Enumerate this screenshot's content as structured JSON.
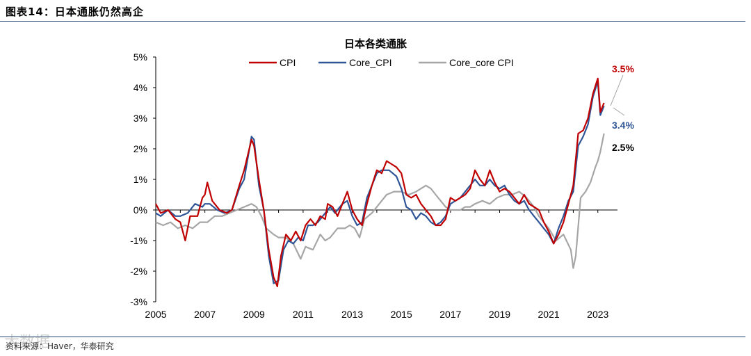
{
  "header": {
    "figure_title": "图表14：日本通胀仍然高企"
  },
  "footer": {
    "source": "资料来源：Haver，华泰研究",
    "watermark": "大数据"
  },
  "colors": {
    "cpi": "#c00000",
    "core": "#2f5597",
    "corecore": "#a6a6a6",
    "rule": "#1f3f6e"
  },
  "chart_data": {
    "type": "line",
    "title": "日本各类通胀",
    "xlabel": "",
    "ylabel": "",
    "xlim": [
      2005,
      2023.8
    ],
    "ylim": [
      -3,
      5
    ],
    "x_ticks": [
      2005,
      2007,
      2009,
      2011,
      2013,
      2015,
      2017,
      2019,
      2021,
      2023
    ],
    "x_tick_labels": [
      "2005",
      "2007",
      "2009",
      "2011",
      "2013",
      "2015",
      "2017",
      "2019",
      "2021",
      "2023"
    ],
    "y_ticks": [
      -3,
      -2,
      -1,
      0,
      1,
      2,
      3,
      4,
      5
    ],
    "y_tick_labels": [
      "-3%",
      "-2%",
      "-1%",
      "0%",
      "1%",
      "2%",
      "3%",
      "4%",
      "5%"
    ],
    "legend": [
      "CPI",
      "Core_CPI",
      "Core_core CPI"
    ],
    "series": [
      {
        "name": "CPI",
        "color": "#c00000",
        "points": [
          [
            2005.0,
            0.2
          ],
          [
            2005.2,
            -0.1
          ],
          [
            2005.5,
            0.0
          ],
          [
            2005.8,
            -0.3
          ],
          [
            2006.0,
            -0.4
          ],
          [
            2006.2,
            -1.0
          ],
          [
            2006.4,
            -0.2
          ],
          [
            2006.7,
            -0.2
          ],
          [
            2006.9,
            0.4
          ],
          [
            2007.0,
            0.5
          ],
          [
            2007.1,
            0.9
          ],
          [
            2007.3,
            0.3
          ],
          [
            2007.6,
            0.0
          ],
          [
            2007.9,
            -0.1
          ],
          [
            2008.1,
            0.0
          ],
          [
            2008.4,
            0.8
          ],
          [
            2008.6,
            1.3
          ],
          [
            2008.9,
            2.3
          ],
          [
            2009.0,
            2.1
          ],
          [
            2009.2,
            1.0
          ],
          [
            2009.4,
            0.0
          ],
          [
            2009.6,
            -1.3
          ],
          [
            2009.8,
            -2.2
          ],
          [
            2009.95,
            -2.5
          ],
          [
            2010.1,
            -1.5
          ],
          [
            2010.3,
            -0.8
          ],
          [
            2010.5,
            -1.0
          ],
          [
            2010.7,
            -0.7
          ],
          [
            2010.9,
            -1.0
          ],
          [
            2011.1,
            -0.5
          ],
          [
            2011.3,
            -0.3
          ],
          [
            2011.5,
            -0.5
          ],
          [
            2011.7,
            -0.2
          ],
          [
            2011.9,
            -0.3
          ],
          [
            2012.0,
            0.2
          ],
          [
            2012.2,
            0.1
          ],
          [
            2012.4,
            -0.2
          ],
          [
            2012.6,
            0.2
          ],
          [
            2012.8,
            0.6
          ],
          [
            2013.0,
            0.0
          ],
          [
            2013.2,
            -0.3
          ],
          [
            2013.4,
            -0.5
          ],
          [
            2013.6,
            0.2
          ],
          [
            2013.8,
            0.8
          ],
          [
            2014.0,
            1.3
          ],
          [
            2014.2,
            1.2
          ],
          [
            2014.4,
            1.6
          ],
          [
            2014.6,
            1.5
          ],
          [
            2014.8,
            1.4
          ],
          [
            2015.0,
            1.2
          ],
          [
            2015.2,
            0.5
          ],
          [
            2015.4,
            0.4
          ],
          [
            2015.6,
            0.5
          ],
          [
            2015.8,
            0.2
          ],
          [
            2016.0,
            0.0
          ],
          [
            2016.2,
            -0.2
          ],
          [
            2016.4,
            -0.5
          ],
          [
            2016.6,
            -0.5
          ],
          [
            2016.8,
            -0.3
          ],
          [
            2017.0,
            0.4
          ],
          [
            2017.2,
            0.3
          ],
          [
            2017.4,
            0.4
          ],
          [
            2017.6,
            0.5
          ],
          [
            2017.8,
            0.7
          ],
          [
            2018.0,
            1.3
          ],
          [
            2018.2,
            1.0
          ],
          [
            2018.4,
            0.8
          ],
          [
            2018.6,
            1.3
          ],
          [
            2018.8,
            0.9
          ],
          [
            2019.0,
            0.6
          ],
          [
            2019.2,
            0.7
          ],
          [
            2019.4,
            0.6
          ],
          [
            2019.6,
            0.4
          ],
          [
            2019.8,
            0.2
          ],
          [
            2020.0,
            0.5
          ],
          [
            2020.2,
            0.2
          ],
          [
            2020.4,
            0.1
          ],
          [
            2020.6,
            0.0
          ],
          [
            2020.8,
            -0.4
          ],
          [
            2021.0,
            -0.7
          ],
          [
            2021.2,
            -1.1
          ],
          [
            2021.4,
            -0.8
          ],
          [
            2021.6,
            -0.4
          ],
          [
            2021.8,
            0.2
          ],
          [
            2022.0,
            0.8
          ],
          [
            2022.2,
            2.5
          ],
          [
            2022.4,
            2.6
          ],
          [
            2022.6,
            3.0
          ],
          [
            2022.8,
            3.8
          ],
          [
            2023.0,
            4.3
          ],
          [
            2023.1,
            3.2
          ],
          [
            2023.25,
            3.5
          ]
        ]
      },
      {
        "name": "Core_CPI",
        "color": "#2f5597",
        "points": [
          [
            2005.0,
            -0.1
          ],
          [
            2005.2,
            -0.2
          ],
          [
            2005.5,
            0.0
          ],
          [
            2005.8,
            -0.2
          ],
          [
            2006.0,
            -0.2
          ],
          [
            2006.3,
            -0.1
          ],
          [
            2006.6,
            0.2
          ],
          [
            2006.9,
            0.1
          ],
          [
            2007.0,
            0.2
          ],
          [
            2007.2,
            0.2
          ],
          [
            2007.5,
            0.0
          ],
          [
            2007.8,
            -0.1
          ],
          [
            2008.1,
            0.0
          ],
          [
            2008.4,
            0.7
          ],
          [
            2008.6,
            1.0
          ],
          [
            2008.9,
            2.4
          ],
          [
            2009.0,
            2.3
          ],
          [
            2009.2,
            0.8
          ],
          [
            2009.4,
            0.0
          ],
          [
            2009.6,
            -1.5
          ],
          [
            2009.8,
            -2.4
          ],
          [
            2010.0,
            -2.3
          ],
          [
            2010.2,
            -1.3
          ],
          [
            2010.4,
            -1.0
          ],
          [
            2010.6,
            -1.1
          ],
          [
            2010.8,
            -0.9
          ],
          [
            2011.0,
            -1.0
          ],
          [
            2011.2,
            -0.5
          ],
          [
            2011.4,
            -0.5
          ],
          [
            2011.6,
            -0.4
          ],
          [
            2011.9,
            -0.1
          ],
          [
            2012.1,
            0.1
          ],
          [
            2012.3,
            -0.1
          ],
          [
            2012.6,
            0.2
          ],
          [
            2012.8,
            0.3
          ],
          [
            2013.0,
            -0.2
          ],
          [
            2013.2,
            -0.5
          ],
          [
            2013.4,
            -0.4
          ],
          [
            2013.6,
            0.4
          ],
          [
            2013.8,
            0.8
          ],
          [
            2014.0,
            1.2
          ],
          [
            2014.2,
            1.3
          ],
          [
            2014.5,
            1.3
          ],
          [
            2014.8,
            1.1
          ],
          [
            2015.0,
            0.7
          ],
          [
            2015.2,
            0.1
          ],
          [
            2015.4,
            0.0
          ],
          [
            2015.6,
            -0.3
          ],
          [
            2015.8,
            -0.1
          ],
          [
            2016.0,
            -0.2
          ],
          [
            2016.2,
            -0.4
          ],
          [
            2016.4,
            -0.5
          ],
          [
            2016.6,
            -0.4
          ],
          [
            2016.8,
            -0.2
          ],
          [
            2017.0,
            0.2
          ],
          [
            2017.2,
            0.3
          ],
          [
            2017.4,
            0.4
          ],
          [
            2017.6,
            0.6
          ],
          [
            2017.8,
            0.8
          ],
          [
            2018.0,
            1.0
          ],
          [
            2018.2,
            0.8
          ],
          [
            2018.4,
            0.8
          ],
          [
            2018.6,
            1.0
          ],
          [
            2018.8,
            0.8
          ],
          [
            2019.0,
            0.7
          ],
          [
            2019.2,
            0.8
          ],
          [
            2019.4,
            0.5
          ],
          [
            2019.6,
            0.3
          ],
          [
            2019.8,
            0.2
          ],
          [
            2020.0,
            0.3
          ],
          [
            2020.2,
            0.0
          ],
          [
            2020.4,
            -0.2
          ],
          [
            2020.6,
            -0.4
          ],
          [
            2020.8,
            -0.6
          ],
          [
            2021.0,
            -0.8
          ],
          [
            2021.2,
            -1.1
          ],
          [
            2021.4,
            -0.6
          ],
          [
            2021.6,
            -0.2
          ],
          [
            2021.8,
            0.3
          ],
          [
            2022.0,
            0.6
          ],
          [
            2022.2,
            2.1
          ],
          [
            2022.4,
            2.4
          ],
          [
            2022.6,
            2.8
          ],
          [
            2022.8,
            3.7
          ],
          [
            2023.0,
            4.2
          ],
          [
            2023.1,
            3.1
          ],
          [
            2023.25,
            3.4
          ]
        ]
      },
      {
        "name": "Core_core CPI",
        "color": "#a6a6a6",
        "points": [
          [
            2005.0,
            -0.4
          ],
          [
            2005.3,
            -0.5
          ],
          [
            2005.6,
            -0.4
          ],
          [
            2005.9,
            -0.6
          ],
          [
            2006.2,
            -0.5
          ],
          [
            2006.5,
            -0.6
          ],
          [
            2006.8,
            -0.4
          ],
          [
            2007.1,
            -0.4
          ],
          [
            2007.4,
            -0.2
          ],
          [
            2007.7,
            -0.2
          ],
          [
            2008.0,
            -0.1
          ],
          [
            2008.3,
            0.0
          ],
          [
            2008.6,
            0.1
          ],
          [
            2008.9,
            0.2
          ],
          [
            2009.1,
            0.1
          ],
          [
            2009.3,
            -0.2
          ],
          [
            2009.5,
            -0.6
          ],
          [
            2009.8,
            -0.8
          ],
          [
            2010.0,
            -0.9
          ],
          [
            2010.3,
            -0.9
          ],
          [
            2010.6,
            -1.1
          ],
          [
            2010.9,
            -1.6
          ],
          [
            2011.1,
            -1.2
          ],
          [
            2011.4,
            -1.3
          ],
          [
            2011.7,
            -0.8
          ],
          [
            2011.9,
            -1.0
          ],
          [
            2012.1,
            -0.9
          ],
          [
            2012.4,
            -0.6
          ],
          [
            2012.7,
            -0.6
          ],
          [
            2012.9,
            -0.5
          ],
          [
            2013.1,
            -0.6
          ],
          [
            2013.3,
            -0.9
          ],
          [
            2013.5,
            -0.3
          ],
          [
            2013.8,
            -0.1
          ],
          [
            2014.1,
            0.2
          ],
          [
            2014.4,
            0.5
          ],
          [
            2014.7,
            0.6
          ],
          [
            2015.0,
            0.6
          ],
          [
            2015.3,
            0.5
          ],
          [
            2015.6,
            0.6
          ],
          [
            2015.8,
            0.7
          ],
          [
            2016.0,
            0.8
          ],
          [
            2016.2,
            0.7
          ],
          [
            2016.4,
            0.5
          ],
          [
            2016.6,
            0.3
          ],
          [
            2016.8,
            0.1
          ],
          [
            2017.0,
            0.0
          ],
          [
            2017.2,
            0.0
          ],
          [
            2017.4,
            0.0
          ],
          [
            2017.6,
            0.1
          ],
          [
            2017.8,
            0.1
          ],
          [
            2018.0,
            0.2
          ],
          [
            2018.3,
            0.3
          ],
          [
            2018.6,
            0.2
          ],
          [
            2018.9,
            0.4
          ],
          [
            2019.2,
            0.5
          ],
          [
            2019.5,
            0.5
          ],
          [
            2019.8,
            0.6
          ],
          [
            2020.1,
            0.4
          ],
          [
            2020.4,
            0.1
          ],
          [
            2020.6,
            -0.2
          ],
          [
            2020.8,
            -0.4
          ],
          [
            2021.0,
            -0.6
          ],
          [
            2021.3,
            -1.0
          ],
          [
            2021.6,
            -0.8
          ],
          [
            2021.9,
            -1.3
          ],
          [
            2022.0,
            -1.9
          ],
          [
            2022.1,
            -1.5
          ],
          [
            2022.3,
            0.4
          ],
          [
            2022.5,
            0.6
          ],
          [
            2022.7,
            0.9
          ],
          [
            2022.9,
            1.4
          ],
          [
            2023.0,
            1.6
          ],
          [
            2023.1,
            1.9
          ],
          [
            2023.25,
            2.5
          ]
        ]
      }
    ],
    "annotations": [
      {
        "label": "3.5%",
        "series": "CPI",
        "color": "#c00000",
        "value": 3.5
      },
      {
        "label": "3.4%",
        "series": "Core_CPI",
        "color": "#2f5597",
        "value": 3.4
      },
      {
        "label": "2.5%",
        "series": "Core_core CPI",
        "color": "#000000",
        "value": 2.5
      }
    ]
  }
}
